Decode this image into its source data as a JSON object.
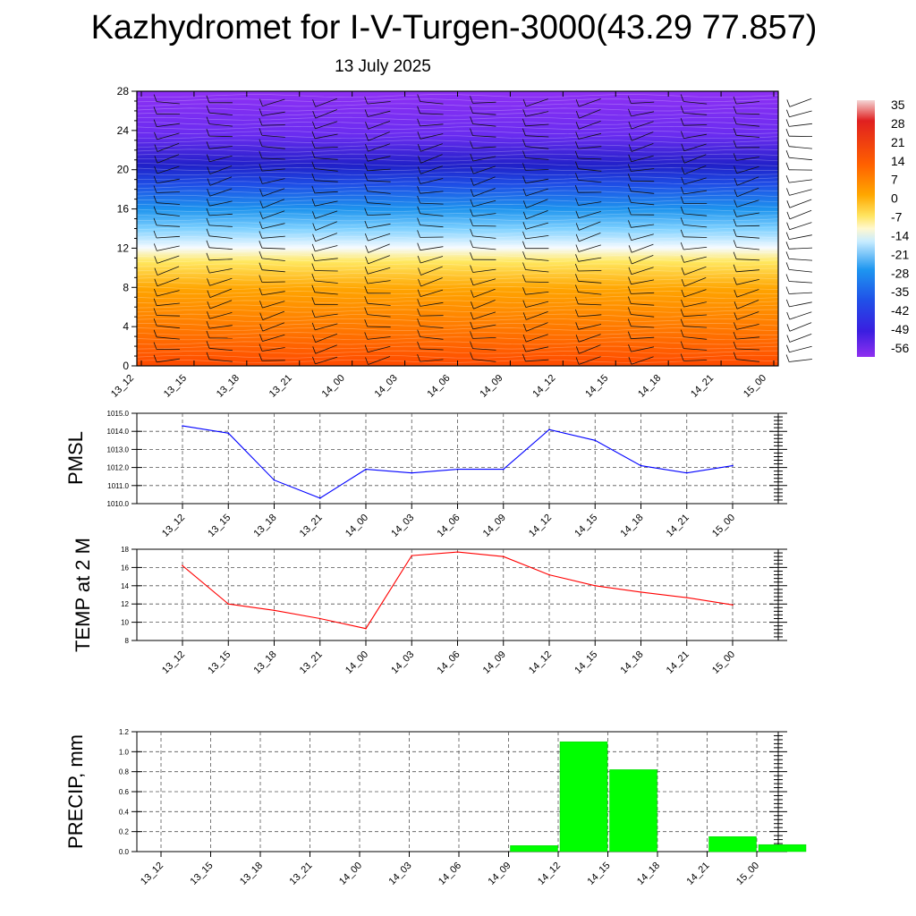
{
  "title": "Kazhydromet for I-V-Turgen-3000(43.29 77.857)",
  "subtitle": "13 July 2025",
  "times": [
    "13_12",
    "13_15",
    "13_18",
    "13_21",
    "14_00",
    "14_03",
    "14_06",
    "14_09",
    "14_12",
    "14_15",
    "14_18",
    "14_21",
    "15_00"
  ],
  "chart_data": [
    {
      "type": "heatmap",
      "title": "",
      "ylim": [
        0,
        28
      ],
      "yticks": [
        "0",
        "4",
        "8",
        "12",
        "16",
        "20",
        "24",
        "28"
      ],
      "x": [
        "13_12",
        "13_15",
        "13_18",
        "13_21",
        "14_00",
        "14_03",
        "14_06",
        "14_09",
        "14_12",
        "14_15",
        "14_18",
        "14_21",
        "15_00"
      ],
      "colorbar_ticks": [
        "35",
        "28",
        "21",
        "14",
        "7",
        "0",
        "-7",
        "-14",
        "-21",
        "-28",
        "-35",
        "-42",
        "-49",
        "-56"
      ],
      "colormap": [
        "#f2c6c6",
        "#e01a1a",
        "#ff5a00",
        "#ffa000",
        "#ffe04a",
        "#fff6c0",
        "#c8eaff",
        "#1e96f0",
        "#2050e8",
        "#3a1ee0",
        "#8a2be2"
      ],
      "overlay": "wind barbs"
    },
    {
      "type": "line",
      "ylabel": "PMSL",
      "ylim": [
        1010.0,
        1015.0
      ],
      "yticks": [
        "1010.0",
        "1011.0",
        "1012.0",
        "1013.0",
        "1014.0",
        "1015.0"
      ],
      "x": [
        "13_12",
        "13_15",
        "13_18",
        "13_21",
        "14_00",
        "14_03",
        "14_06",
        "14_09",
        "14_12",
        "14_15",
        "14_18",
        "14_21",
        "15_00"
      ],
      "series": [
        {
          "values": [
            1014.3,
            1013.9,
            1011.3,
            1010.3,
            1011.9,
            1011.7,
            1011.9,
            1011.9,
            1014.1,
            1013.5,
            1012.1,
            1011.7,
            1012.1
          ],
          "color": "#0000ff"
        }
      ],
      "grid": true
    },
    {
      "type": "line",
      "ylabel": "TEMP at 2 M",
      "ylim": [
        8,
        18
      ],
      "yticks": [
        "8",
        "10",
        "12",
        "14",
        "16",
        "18"
      ],
      "x": [
        "13_12",
        "13_15",
        "13_18",
        "13_21",
        "14_00",
        "14_03",
        "14_06",
        "14_09",
        "14_12",
        "14_15",
        "14_18",
        "14_21",
        "15_00"
      ],
      "series": [
        {
          "values": [
            16.2,
            12.0,
            11.3,
            10.4,
            9.3,
            17.3,
            17.7,
            17.2,
            15.2,
            14.0,
            13.3,
            12.7,
            11.9
          ],
          "color": "#ff0000"
        }
      ],
      "grid": true
    },
    {
      "type": "bar",
      "ylabel": "PRECIP, mm",
      "ylim": [
        0.0,
        1.2
      ],
      "yticks": [
        "0.0",
        "0.2",
        "0.4",
        "0.6",
        "0.8",
        "1.0",
        "1.2"
      ],
      "categories": [
        "13_12",
        "13_15",
        "13_18",
        "13_21",
        "14_00",
        "14_03",
        "14_06",
        "14_09",
        "14_12",
        "14_15",
        "14_18",
        "14_21",
        "15_00"
      ],
      "values": [
        0,
        0,
        0,
        0,
        0,
        0,
        0,
        0.06,
        1.1,
        0.82,
        0,
        0.15,
        0.07
      ],
      "color": "#00ff00",
      "grid": true
    }
  ]
}
